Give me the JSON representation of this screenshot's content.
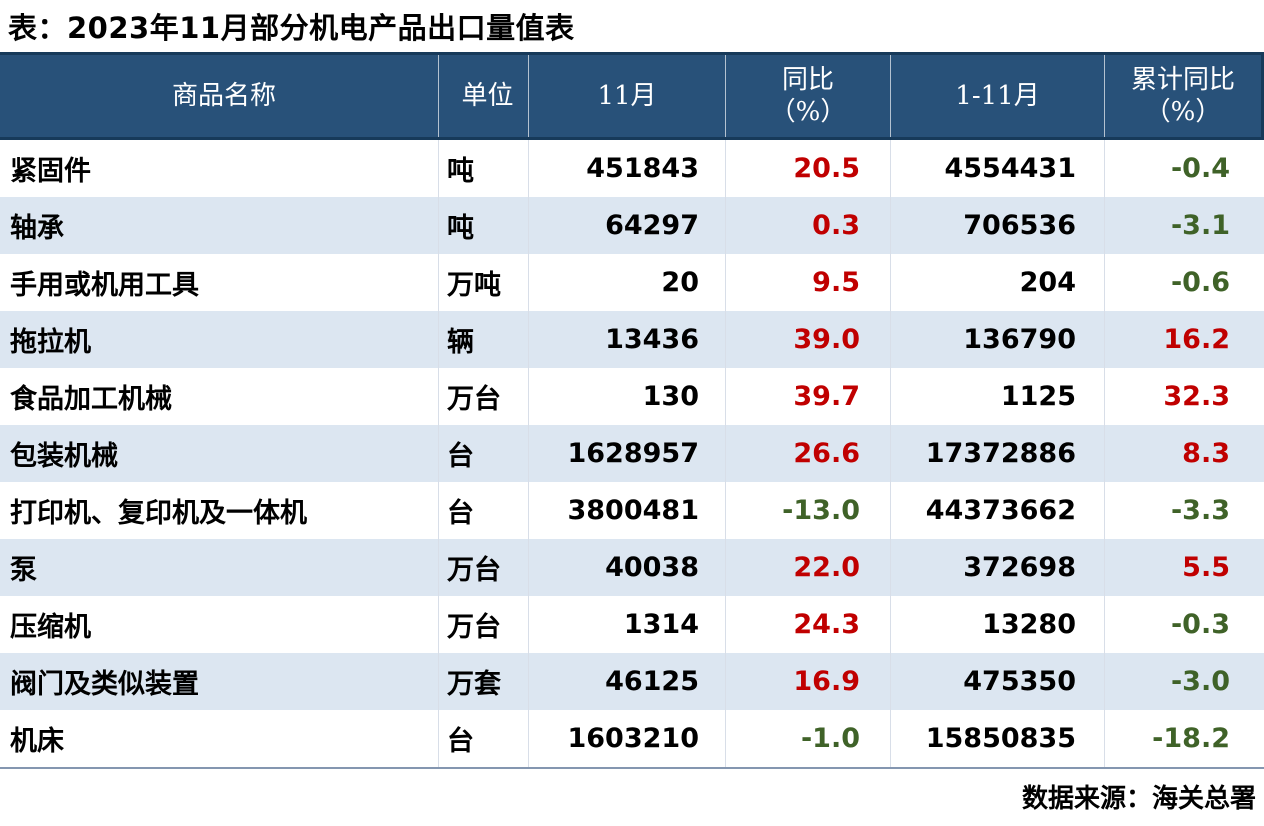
{
  "title": "表：2023年11月部分机电产品出口量值表",
  "footer": {
    "source": "数据来源：海关总署"
  },
  "colors": {
    "header_bg": "#285179",
    "header_border": "#173a5a",
    "header_text": "#ffffff",
    "stripe_bg": "#dce6f1",
    "positive": "#c00000",
    "negative": "#3f6228",
    "body_text": "#000000",
    "bottom_line": "#8496b0"
  },
  "table": {
    "columns": [
      {
        "label": "商品名称",
        "sub": ""
      },
      {
        "label": "单位",
        "sub": ""
      },
      {
        "label": "11月",
        "sub": ""
      },
      {
        "label": "同比",
        "sub": "（%）"
      },
      {
        "label": "1-11月",
        "sub": ""
      },
      {
        "label": "累计同比",
        "sub": "（%）"
      }
    ],
    "rows": [
      {
        "name": "紧固件",
        "unit": "吨",
        "nov": "451843",
        "yoy": "20.5",
        "jan_nov": "4554431",
        "cum_yoy": "-0.4"
      },
      {
        "name": "轴承",
        "unit": "吨",
        "nov": "64297",
        "yoy": "0.3",
        "jan_nov": "706536",
        "cum_yoy": "-3.1"
      },
      {
        "name": "手用或机用工具",
        "unit": "万吨",
        "nov": "20",
        "yoy": "9.5",
        "jan_nov": "204",
        "cum_yoy": "-0.6"
      },
      {
        "name": "拖拉机",
        "unit": "辆",
        "nov": "13436",
        "yoy": "39.0",
        "jan_nov": "136790",
        "cum_yoy": "16.2"
      },
      {
        "name": "食品加工机械",
        "unit": "万台",
        "nov": "130",
        "yoy": "39.7",
        "jan_nov": "1125",
        "cum_yoy": "32.3"
      },
      {
        "name": "包装机械",
        "unit": "台",
        "nov": "1628957",
        "yoy": "26.6",
        "jan_nov": "17372886",
        "cum_yoy": "8.3"
      },
      {
        "name": "打印机、复印机及一体机",
        "unit": "台",
        "nov": "3800481",
        "yoy": "-13.0",
        "jan_nov": "44373662",
        "cum_yoy": "-3.3"
      },
      {
        "name": "泵",
        "unit": "万台",
        "nov": "40038",
        "yoy": "22.0",
        "jan_nov": "372698",
        "cum_yoy": "5.5"
      },
      {
        "name": "压缩机",
        "unit": "万台",
        "nov": "1314",
        "yoy": "24.3",
        "jan_nov": "13280",
        "cum_yoy": "-0.3"
      },
      {
        "name": "阀门及类似装置",
        "unit": "万套",
        "nov": "46125",
        "yoy": "16.9",
        "jan_nov": "475350",
        "cum_yoy": "-3.0"
      },
      {
        "name": "机床",
        "unit": "台",
        "nov": "1603210",
        "yoy": "-1.0",
        "jan_nov": "15850835",
        "cum_yoy": "-18.2"
      }
    ]
  },
  "chart_data": {
    "type": "table",
    "title": "表：2023年11月部分机电产品出口量值表",
    "columns": [
      "商品名称",
      "单位",
      "11月",
      "同比（%）",
      "1-11月",
      "累计同比（%）"
    ],
    "rows": [
      [
        "紧固件",
        "吨",
        451843,
        20.5,
        4554431,
        -0.4
      ],
      [
        "轴承",
        "吨",
        64297,
        0.3,
        706536,
        -3.1
      ],
      [
        "手用或机用工具",
        "万吨",
        20,
        9.5,
        204,
        -0.6
      ],
      [
        "拖拉机",
        "辆",
        13436,
        39.0,
        136790,
        16.2
      ],
      [
        "食品加工机械",
        "万台",
        130,
        39.7,
        1125,
        32.3
      ],
      [
        "包装机械",
        "台",
        1628957,
        26.6,
        17372886,
        8.3
      ],
      [
        "打印机、复印机及一体机",
        "台",
        3800481,
        -13.0,
        44373662,
        -3.3
      ],
      [
        "泵",
        "万台",
        40038,
        22.0,
        372698,
        5.5
      ],
      [
        "压缩机",
        "万台",
        1314,
        24.3,
        13280,
        -0.3
      ],
      [
        "阀门及类似装置",
        "万套",
        46125,
        16.9,
        475350,
        -3.0
      ],
      [
        "机床",
        "台",
        1603210,
        -1.0,
        15850835,
        -18.2
      ]
    ],
    "source": "数据来源：海关总署",
    "notes": "positive YoY values shown in red (#c00000), negative in dark green (#3f6228); header navy band; alternating white / light-blue row striping"
  }
}
